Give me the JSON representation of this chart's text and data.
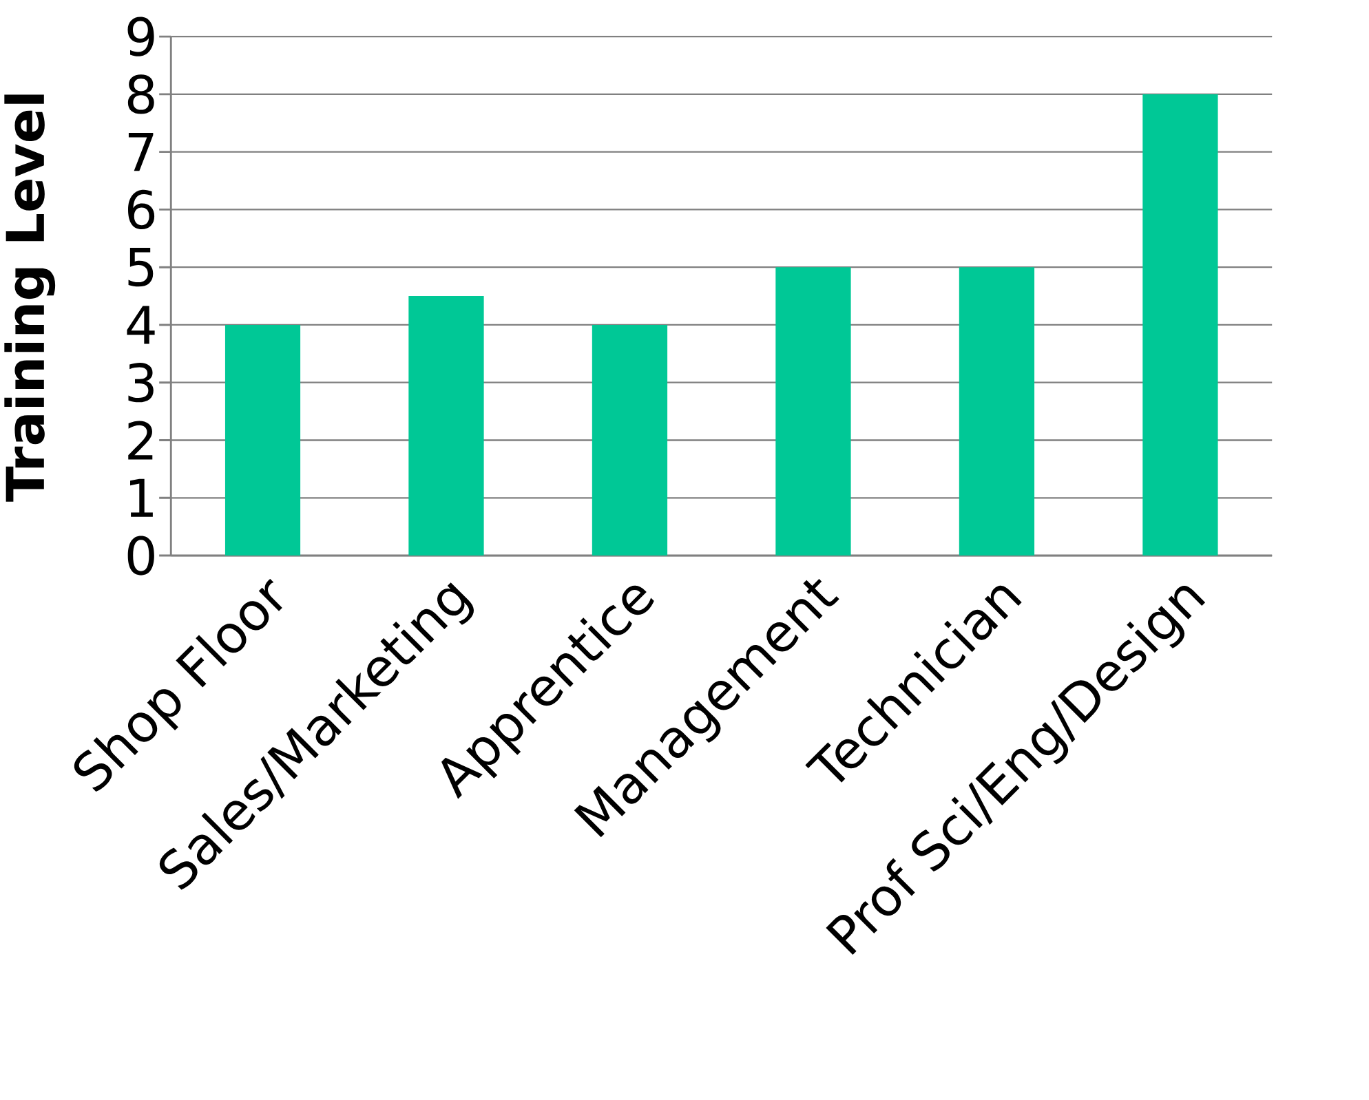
{
  "chart_data": {
    "type": "bar",
    "ylabel": "Training Level",
    "categories": [
      "Shop Floor",
      "Sales/Marketing",
      "Apprentice",
      "Management",
      "Technician",
      "Prof Sci/Eng/Design"
    ],
    "values": [
      4,
      4.5,
      4,
      5,
      5,
      8
    ],
    "color": "#00c896",
    "ylim": [
      0,
      9
    ],
    "yticks": [
      0,
      1,
      2,
      3,
      4,
      5,
      6,
      7,
      8,
      9
    ],
    "grid": "y"
  }
}
